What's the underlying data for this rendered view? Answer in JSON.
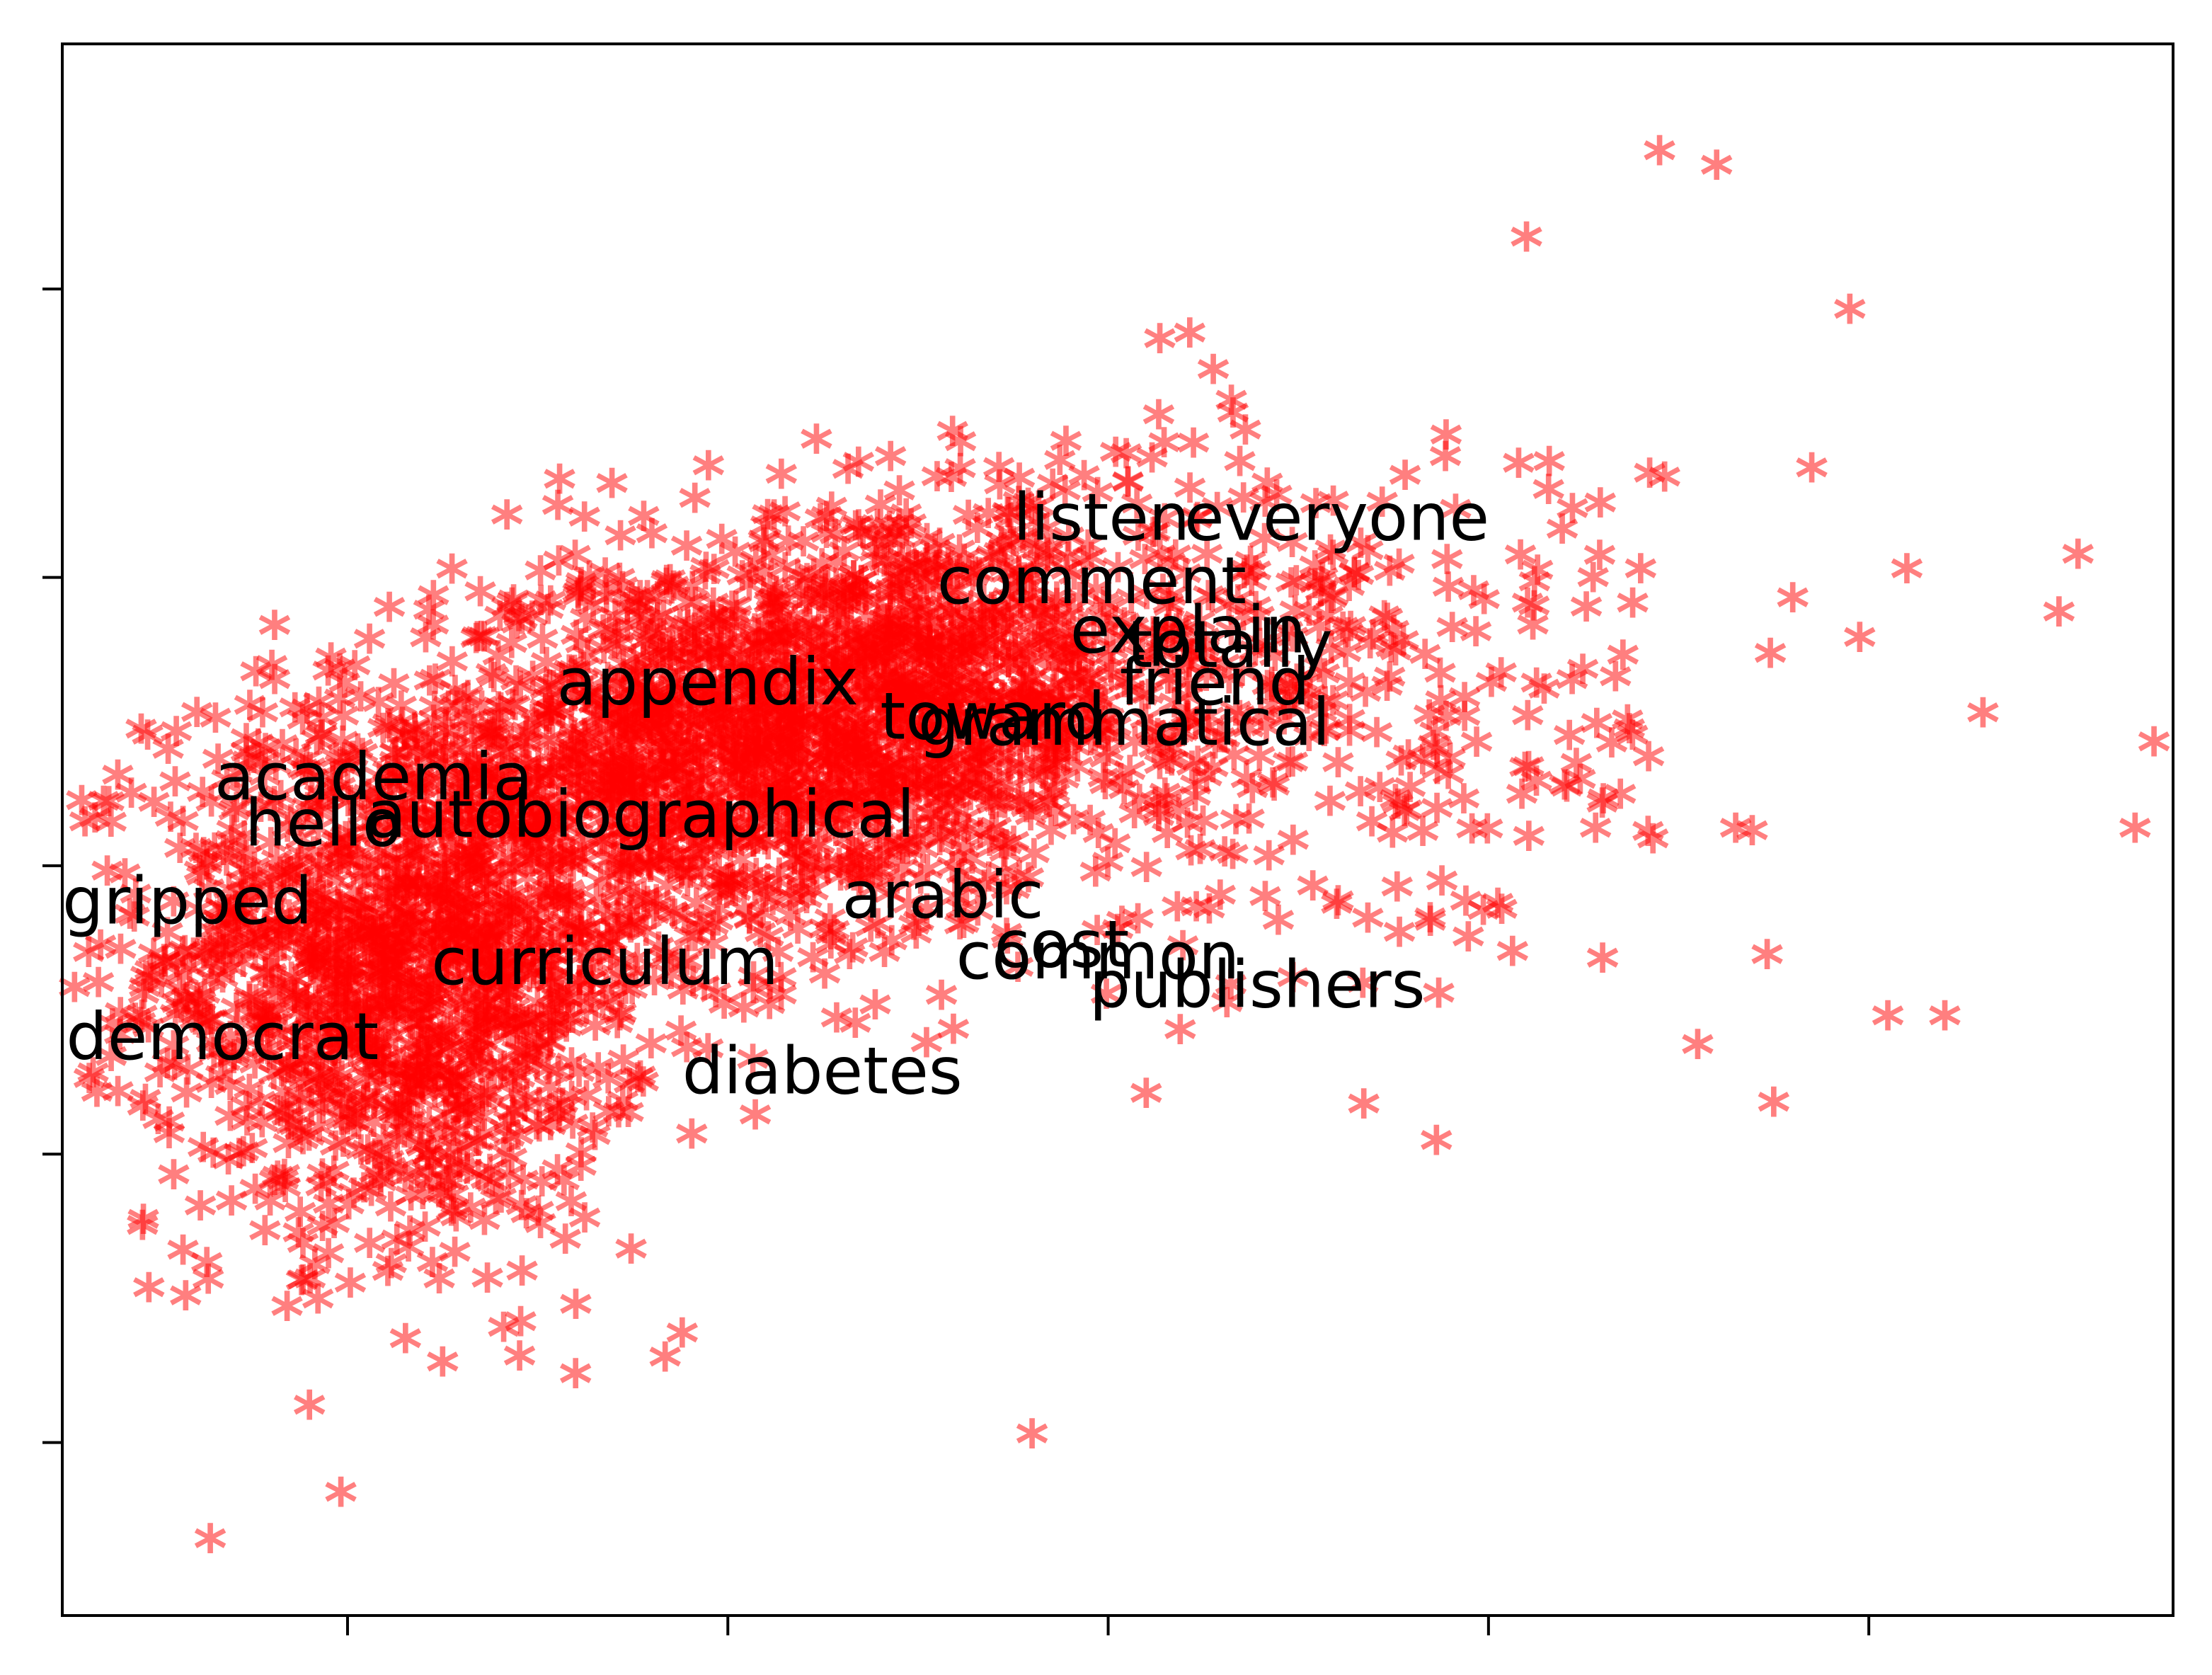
{
  "chart_data": {
    "type": "scatter",
    "title": "",
    "xlabel": "",
    "ylabel": "",
    "xlim": [
      -0.75,
      4.8
    ],
    "ylim": [
      -3.6,
      1.85
    ],
    "xticks": [
      0,
      1,
      2,
      3,
      4
    ],
    "yticks": [
      -3,
      -2,
      -1,
      0,
      1
    ],
    "tick_labels_visible": false,
    "grid": false,
    "legend": "none",
    "marker": "*",
    "marker_color": "#ff0000",
    "marker_alpha": 0.5,
    "clusters": [
      {
        "cx": 0.15,
        "cy": -1.35,
        "sx": 0.33,
        "sy": 0.48,
        "n": 1500
      },
      {
        "cx": 0.92,
        "cy": -0.65,
        "sx": 0.32,
        "sy": 0.35,
        "n": 1000
      },
      {
        "cx": 1.5,
        "cy": -0.45,
        "sx": 0.3,
        "sy": 0.3,
        "n": 800
      },
      {
        "cx": 2.3,
        "cy": -0.4,
        "sx": 0.55,
        "sy": 0.45,
        "n": 500
      }
    ],
    "points": [
      [
        3.45,
        1.45
      ],
      [
        3.6,
        1.4
      ],
      [
        3.1,
        1.15
      ],
      [
        3.85,
        0.35
      ],
      [
        4.1,
        0.0
      ],
      [
        4.5,
        -0.15
      ],
      [
        4.75,
        -0.6
      ],
      [
        4.7,
        -0.9
      ],
      [
        4.3,
        -0.5
      ],
      [
        3.8,
        -0.1
      ],
      [
        4.05,
        -1.55
      ],
      [
        4.2,
        -1.55
      ],
      [
        3.75,
        -1.85
      ],
      [
        3.55,
        -1.65
      ],
      [
        1.8,
        -3.0
      ],
      [
        0.25,
        -2.75
      ],
      [
        -0.1,
        -2.9
      ],
      [
        0.6,
        -2.55
      ],
      [
        0.88,
        -2.65
      ],
      [
        3.3,
        -1.35
      ],
      [
        3.2,
        -0.75
      ],
      [
        3.65,
        -0.9
      ],
      [
        3.95,
        0.9
      ],
      [
        4.55,
        0.05
      ],
      [
        3.4,
        0.0
      ]
    ],
    "annotations": [
      {
        "text": "listen",
        "x": 1.75,
        "y": 0.13
      },
      {
        "text": "everyone",
        "x": 2.2,
        "y": 0.13
      },
      {
        "text": "comment",
        "x": 1.55,
        "y": -0.09
      },
      {
        "text": "explain",
        "x": 1.9,
        "y": -0.26
      },
      {
        "text": "totally",
        "x": 2.05,
        "y": -0.31
      },
      {
        "text": "friend",
        "x": 2.03,
        "y": -0.44
      },
      {
        "text": "appendix",
        "x": 0.55,
        "y": -0.44
      },
      {
        "text": "toward",
        "x": 1.4,
        "y": -0.56
      },
      {
        "text": "grammatical",
        "x": 1.5,
        "y": -0.58
      },
      {
        "text": "academia",
        "x": -0.35,
        "y": -0.77
      },
      {
        "text": "autobiographical",
        "x": 0.05,
        "y": -0.9
      },
      {
        "text": "hello",
        "x": -0.27,
        "y": -0.93
      },
      {
        "text": "arabic",
        "x": 1.3,
        "y": -1.18
      },
      {
        "text": "gripped",
        "x": -0.75,
        "y": -1.2
      },
      {
        "text": "cost",
        "x": 1.7,
        "y": -1.35
      },
      {
        "text": "common",
        "x": 1.6,
        "y": -1.39
      },
      {
        "text": "curriculum",
        "x": 0.22,
        "y": -1.41
      },
      {
        "text": "publishers",
        "x": 1.95,
        "y": -1.49
      },
      {
        "text": "democrat",
        "x": -0.74,
        "y": -1.67
      },
      {
        "text": "diabetes",
        "x": 0.88,
        "y": -1.79
      }
    ]
  }
}
